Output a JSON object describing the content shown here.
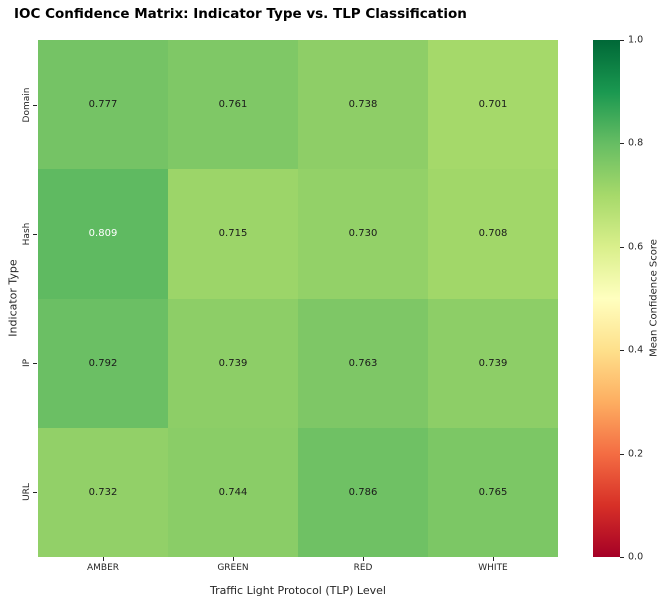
{
  "title": "IOC Confidence Matrix: Indicator Type vs. TLP Classification",
  "chart_data": {
    "type": "heatmap",
    "title": "IOC Confidence Matrix: Indicator Type vs. TLP Classification",
    "xlabel": "Traffic Light Protocol (TLP) Level",
    "ylabel": "Indicator Type",
    "x_categories": [
      "AMBER",
      "GREEN",
      "RED",
      "WHITE"
    ],
    "y_categories": [
      "Domain",
      "Hash",
      "IP",
      "URL"
    ],
    "values": [
      [
        0.777,
        0.761,
        0.738,
        0.701
      ],
      [
        0.809,
        0.715,
        0.73,
        0.708
      ],
      [
        0.792,
        0.739,
        0.763,
        0.739
      ],
      [
        0.732,
        0.744,
        0.786,
        0.765
      ]
    ],
    "annotation_decimals": 3,
    "grid": false,
    "colorbar": {
      "label": "Mean Confidence Score",
      "ticks": [
        1.0,
        0.8,
        0.6,
        0.4,
        0.2,
        0.0
      ],
      "vmin": 0.0,
      "vmax": 1.0,
      "colormap": "RdYlGn",
      "colormap_stops": [
        "#a50026",
        "#d73027",
        "#f46d43",
        "#fdae61",
        "#fee08b",
        "#ffffbf",
        "#d9ef8b",
        "#a6d96a",
        "#66bd63",
        "#1a9850",
        "#006837"
      ],
      "annotation_dark_text": "#1a1a1a",
      "annotation_light_text": "#ffffff"
    }
  }
}
